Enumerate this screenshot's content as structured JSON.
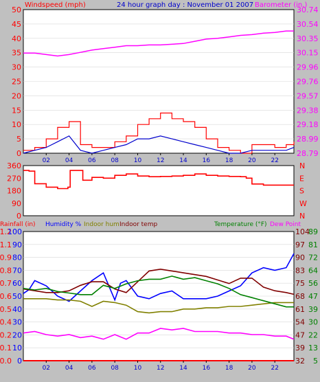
{
  "header": {
    "windspeed_label": "Windspeed (mph)",
    "title": "24 hour graph day : November 01 2007",
    "barometer_label": "Barometer (in.)"
  },
  "colors": {
    "background": "#c0c0c0",
    "plot_bg": "#ffffff",
    "wind_gust": "#ff0000",
    "wind_avg": "#0000cc",
    "barometer": "#ff00ff",
    "direction": "#ff0000",
    "rainfall": "#ff0000",
    "humidity": "#0000ff",
    "indoor_humidity": "#808000",
    "indoor_temp": "#800000",
    "temperature": "#008000",
    "dew_point": "#ff00ff"
  },
  "chart_data": [
    {
      "type": "line",
      "xlabel": "",
      "x_ticks": [
        "02",
        "04",
        "06",
        "08",
        "10",
        "12",
        "14",
        "16",
        "18",
        "20",
        "22"
      ],
      "xlim": [
        0,
        23.67
      ],
      "yleft_label": "Windspeed (mph)",
      "yleft_ticks": [
        "0",
        "5",
        "10",
        "15",
        "20",
        "25",
        "30",
        "35",
        "40",
        "45",
        "50"
      ],
      "ylim_left": [
        0,
        50
      ],
      "yright_label": "Barometer (in.)",
      "yright_ticks": [
        "28.79",
        "28.99",
        "29.18",
        "29.38",
        "29.57",
        "29.76",
        "29.96",
        "30.15",
        "30.35",
        "30.54",
        "30.74"
      ],
      "ylim_right": [
        28.79,
        30.74
      ],
      "series": [
        {
          "name": "Barometer (in.)",
          "axis": "right",
          "x": [
            0,
            1,
            2,
            3,
            4,
            5,
            6,
            7,
            8,
            9,
            10,
            11,
            12,
            13,
            14,
            15,
            16,
            17,
            18,
            19,
            20,
            21,
            22,
            23,
            23.67
          ],
          "values": [
            30.15,
            30.15,
            30.13,
            30.11,
            30.13,
            30.16,
            30.19,
            30.21,
            30.23,
            30.25,
            30.25,
            30.26,
            30.26,
            30.27,
            30.28,
            30.31,
            30.34,
            30.35,
            30.37,
            30.39,
            30.4,
            30.42,
            30.43,
            30.45,
            30.45
          ]
        },
        {
          "name": "Wind gust",
          "axis": "left",
          "x": [
            0,
            1,
            2,
            3,
            4,
            5,
            6,
            7,
            8,
            9,
            10,
            11,
            12,
            13,
            14,
            15,
            16,
            17,
            18,
            19,
            20,
            21,
            22,
            23,
            23.67
          ],
          "values": [
            1,
            2,
            5,
            9,
            11,
            3,
            2,
            2,
            4,
            6,
            10,
            12,
            14,
            12,
            11,
            9,
            5,
            2,
            1,
            0,
            3,
            3,
            2,
            3,
            4
          ]
        },
        {
          "name": "Wind average",
          "axis": "left",
          "x": [
            0,
            1,
            2,
            3,
            4,
            5,
            6,
            7,
            8,
            9,
            10,
            11,
            12,
            13,
            14,
            15,
            16,
            17,
            18,
            19,
            20,
            21,
            22,
            23,
            23.67
          ],
          "values": [
            0,
            1,
            2,
            4,
            6,
            1,
            0,
            1,
            2,
            3,
            5,
            5,
            6,
            5,
            4,
            3,
            2,
            1,
            0,
            0,
            1,
            1,
            1,
            1,
            2
          ]
        }
      ]
    },
    {
      "type": "line",
      "x_ticks": [],
      "xlim": [
        0,
        23.67
      ],
      "yleft_ticks": [
        "0",
        "90",
        "180",
        "270",
        "360"
      ],
      "ylim_left": [
        0,
        360
      ],
      "yright_ticks": [
        "N",
        "W",
        "S",
        "E",
        "N"
      ],
      "series": [
        {
          "name": "Wind direction",
          "axis": "left",
          "x": [
            0,
            0.5,
            1,
            2,
            3,
            3.9,
            4.1,
            5,
            5.2,
            6,
            7,
            8,
            9,
            10,
            11,
            12,
            13,
            14,
            15,
            16,
            17,
            18,
            19,
            19.5,
            20,
            21,
            22,
            23,
            23.67
          ],
          "values": [
            325,
            320,
            230,
            205,
            195,
            205,
            325,
            325,
            255,
            275,
            270,
            290,
            300,
            285,
            280,
            282,
            285,
            290,
            300,
            290,
            285,
            282,
            280,
            270,
            228,
            220,
            220,
            220,
            220
          ]
        }
      ]
    },
    {
      "type": "line",
      "x_ticks": [
        "02",
        "04",
        "06",
        "08",
        "10",
        "12",
        "14",
        "16",
        "18",
        "20",
        "22"
      ],
      "xlim": [
        0,
        23.67
      ],
      "header_labels": [
        "Rainfall (in)",
        "Humidity %",
        "Indoor hum",
        "Indoor temp",
        "Temperature (°F)",
        "Dew Point"
      ],
      "rainfall_ticks": [
        "0.0",
        "0.1",
        "0.2",
        "0.4",
        "0.5",
        "0.6",
        "0.7",
        "0.8",
        "0.9",
        "1.1",
        "1.2"
      ],
      "humidity_ticks": [
        "0",
        "10",
        "20",
        "30",
        "40",
        "50",
        "60",
        "70",
        "80",
        "90",
        "100"
      ],
      "indoor_temp_ticks": [
        "32",
        "39",
        "47",
        "54",
        "61",
        "68",
        "75",
        "83",
        "90",
        "97",
        "104"
      ],
      "temperature_ticks": [
        "5",
        "13",
        "22",
        "30",
        "39",
        "47",
        "56",
        "64",
        "72",
        "81",
        "89"
      ],
      "ylim_rainfall": [
        0,
        1.2
      ],
      "ylim_humidity": [
        0,
        100
      ],
      "ylim_indoor_temp": [
        32,
        104
      ],
      "ylim_temperature": [
        5,
        89
      ],
      "series": [
        {
          "name": "Rainfall (in)",
          "axis": "rainfall",
          "x": [
            0,
            23.67
          ],
          "values": [
            0,
            0
          ]
        },
        {
          "name": "Humidity %",
          "axis": "humidity",
          "x": [
            0,
            0.5,
            1,
            2,
            3,
            4,
            5,
            6,
            7,
            8,
            8.5,
            9,
            10,
            11,
            12,
            13,
            14,
            15,
            16,
            17,
            18,
            19,
            20,
            21,
            22,
            23,
            23.67
          ],
          "values": [
            52,
            55,
            62,
            58,
            50,
            46,
            54,
            62,
            68,
            47,
            60,
            62,
            50,
            48,
            52,
            54,
            48,
            48,
            48,
            50,
            54,
            58,
            68,
            72,
            70,
            72,
            83
          ]
        },
        {
          "name": "Indoor hum",
          "axis": "humidity",
          "x": [
            0,
            1,
            2,
            3,
            4,
            5,
            6,
            7,
            8,
            9,
            10,
            11,
            12,
            13,
            14,
            15,
            16,
            17,
            18,
            19,
            20,
            21,
            22,
            23,
            23.67
          ],
          "values": [
            48,
            48,
            48,
            47,
            47,
            46,
            42,
            46,
            45,
            43,
            38,
            37,
            38,
            38,
            40,
            40,
            41,
            41,
            42,
            42,
            43,
            44,
            45,
            45,
            45
          ]
        },
        {
          "name": "Indoor temp",
          "axis": "indoor_temp",
          "x": [
            0,
            1,
            2,
            3,
            4,
            5,
            6,
            7,
            8,
            9,
            10,
            11,
            12,
            13,
            14,
            15,
            16,
            17,
            18,
            19,
            20,
            21,
            22,
            23,
            23.67
          ],
          "values": [
            72,
            71,
            70,
            70,
            71,
            74,
            76,
            76,
            72,
            70,
            76,
            82,
            83,
            82,
            81,
            80,
            79,
            77,
            75,
            78,
            78,
            73,
            71,
            70,
            69
          ]
        },
        {
          "name": "Temperature (°F)",
          "axis": "temperature",
          "x": [
            0,
            1,
            2,
            3,
            4,
            5,
            6,
            7,
            8,
            9,
            10,
            11,
            12,
            13,
            14,
            15,
            16,
            17,
            18,
            19,
            20,
            21,
            22,
            23,
            23.67
          ],
          "values": [
            52,
            51,
            52,
            50,
            49,
            48,
            48,
            54,
            52,
            55,
            57,
            58,
            58,
            60,
            58,
            59,
            57,
            55,
            52,
            48,
            46,
            44,
            42,
            40,
            40
          ]
        },
        {
          "name": "Dew Point",
          "axis": "temperature",
          "x": [
            0,
            1,
            2,
            3,
            4,
            5,
            6,
            7,
            8,
            9,
            10,
            11,
            12,
            13,
            14,
            15,
            16,
            17,
            18,
            19,
            20,
            21,
            22,
            23,
            23.67
          ],
          "values": [
            23,
            24,
            22,
            21,
            22,
            20,
            21,
            19,
            22,
            19,
            23,
            23,
            26,
            25,
            26,
            24,
            24,
            24,
            23,
            23,
            22,
            22,
            21,
            21,
            19
          ]
        }
      ]
    }
  ]
}
